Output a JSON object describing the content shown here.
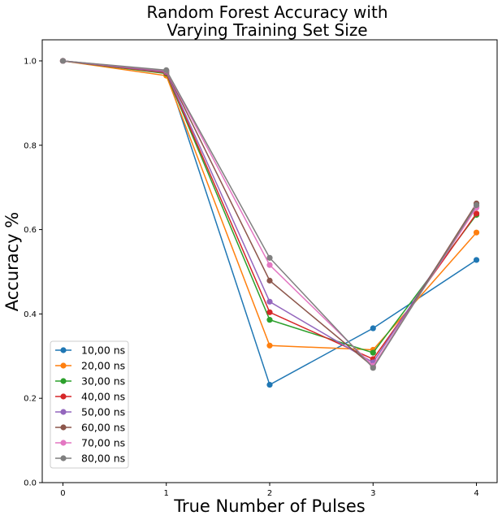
{
  "chart_data": {
    "type": "line",
    "title_line1": "Random Forest Accuracy with",
    "title_line2": "Varying Training Set Size",
    "xlabel": "True Number of Pulses",
    "ylabel": "Accuracy %",
    "x": [
      0,
      1,
      2,
      3,
      4
    ],
    "xlim": [
      -0.2,
      4.2
    ],
    "ylim": [
      0.0,
      1.05
    ],
    "xticks": [
      "0",
      "1",
      "2",
      "3",
      "4"
    ],
    "yticks": [
      "0.0",
      "0.2",
      "0.4",
      "0.6",
      "0.8",
      "1.0"
    ],
    "ytick_values": [
      0.0,
      0.2,
      0.4,
      0.6,
      0.8,
      1.0
    ],
    "grid": false,
    "legend_position": "lower-left",
    "series": [
      {
        "name": "10,00 ns",
        "color": "#1f77b4",
        "values": [
          1.0,
          0.975,
          0.232,
          0.366,
          0.528
        ]
      },
      {
        "name": "20,00 ns",
        "color": "#ff7f0e",
        "values": [
          1.0,
          0.965,
          0.325,
          0.315,
          0.593
        ]
      },
      {
        "name": "30,00 ns",
        "color": "#2ca02c",
        "values": [
          1.0,
          0.97,
          0.386,
          0.308,
          0.635
        ]
      },
      {
        "name": "40,00 ns",
        "color": "#d62728",
        "values": [
          1.0,
          0.972,
          0.404,
          0.293,
          0.638
        ]
      },
      {
        "name": "50,00 ns",
        "color": "#9467bd",
        "values": [
          1.0,
          0.974,
          0.429,
          0.285,
          0.655
        ]
      },
      {
        "name": "60,00 ns",
        "color": "#8c564b",
        "values": [
          1.0,
          0.976,
          0.479,
          0.275,
          0.662
        ]
      },
      {
        "name": "70,00 ns",
        "color": "#e377c2",
        "values": [
          1.0,
          0.977,
          0.516,
          0.277,
          0.652
        ]
      },
      {
        "name": "80,00 ns",
        "color": "#7f7f7f",
        "values": [
          1.0,
          0.978,
          0.533,
          0.272,
          0.658
        ]
      }
    ]
  }
}
